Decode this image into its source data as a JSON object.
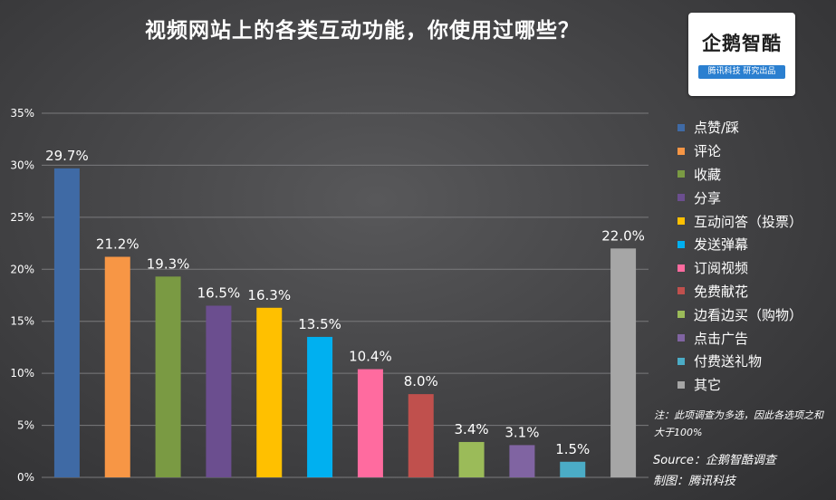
{
  "title": "视频网站上的各类互动功能，你使用过哪些？",
  "logo": {
    "name": "企鹅智酷",
    "tagline": "腾讯科技  研究出品"
  },
  "note": "注：此项调查为多选，因此各选项之和大于100%",
  "source": "Source：企鹅智酷调查",
  "maker": "制图：腾讯科技",
  "chart_data": {
    "type": "bar",
    "title": "视频网站上的各类互动功能，你使用过哪些？",
    "categories": [
      "点赞/踩",
      "评论",
      "收藏",
      "分享",
      "互动问答（投票）",
      "发送弹幕",
      "订阅视频",
      "免费献花",
      "边看边买（购物）",
      "点击广告",
      "付费送礼物",
      "其它"
    ],
    "values": [
      29.7,
      21.2,
      19.3,
      16.5,
      16.3,
      13.5,
      10.4,
      8.0,
      3.4,
      3.1,
      1.5,
      22.0
    ],
    "value_labels": [
      "29.7%",
      "21.2%",
      "19.3%",
      "16.5%",
      "16.3%",
      "13.5%",
      "10.4%",
      "8.0%",
      "3.4%",
      "3.1%",
      "1.5%",
      "22.0%"
    ],
    "colors": [
      "#3f6aa5",
      "#f79645",
      "#7a9a43",
      "#6b4e8f",
      "#ffc000",
      "#00b0f0",
      "#ff6b9f",
      "#c0504d",
      "#9bbb59",
      "#8064a2",
      "#4bacc6",
      "#a6a6a6"
    ],
    "ylim": [
      0,
      35
    ],
    "yticks": [
      0,
      5,
      10,
      15,
      20,
      25,
      30,
      35
    ],
    "ytick_labels": [
      "0%",
      "5%",
      "10%",
      "15%",
      "20%",
      "25%",
      "30%",
      "35%"
    ],
    "grid": true,
    "legend_position": "right"
  }
}
